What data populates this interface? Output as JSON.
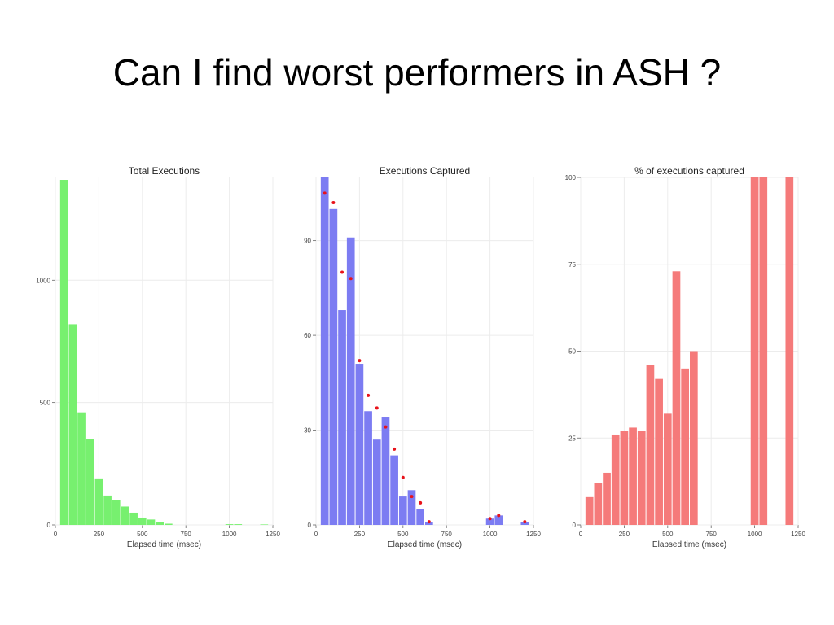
{
  "slide": {
    "title": "Can I find worst performers in ASH ?"
  },
  "colors": {
    "green": "#77f06f",
    "blue": "#7c7cf2",
    "red": "#f57a7a",
    "marker": "#e8121a",
    "grid": "#ececec"
  },
  "chart_data": [
    {
      "type": "bar",
      "title": "Total Executions",
      "xlabel": "Elapsed time (msec)",
      "ylabel": "",
      "xlim": [
        0,
        1250
      ],
      "ylim": [
        0,
        1420
      ],
      "xticks": [
        "0",
        "250",
        "500",
        "750",
        "1000",
        "1250"
      ],
      "yticks": [
        "0",
        "500",
        "1000"
      ],
      "bin_width": 50,
      "x": [
        50,
        100,
        150,
        200,
        250,
        300,
        350,
        400,
        450,
        500,
        550,
        600,
        650,
        1000,
        1050,
        1200
      ],
      "values": [
        1410,
        820,
        460,
        350,
        190,
        120,
        100,
        75,
        50,
        30,
        22,
        12,
        5,
        3,
        3,
        2
      ]
    },
    {
      "type": "bar",
      "title": "Executions Captured",
      "xlabel": "Elapsed time (msec)",
      "ylabel": "",
      "xlim": [
        0,
        1250
      ],
      "ylim": [
        0,
        110
      ],
      "xticks": [
        "0",
        "250",
        "500",
        "750",
        "1000",
        "1250"
      ],
      "yticks": [
        "0",
        "30",
        "60",
        "90"
      ],
      "bin_width": 50,
      "x": [
        50,
        100,
        150,
        200,
        250,
        300,
        350,
        400,
        450,
        500,
        550,
        600,
        650,
        1000,
        1050,
        1200
      ],
      "values": [
        110,
        100,
        68,
        91,
        51,
        36,
        27,
        34,
        22,
        9,
        11,
        5,
        1,
        2,
        3,
        1
      ],
      "markers": [
        105,
        102,
        80,
        78,
        52,
        41,
        37,
        31,
        24,
        15,
        9,
        7,
        1,
        2,
        3,
        1
      ]
    },
    {
      "type": "bar",
      "title": "% of executions captured",
      "xlabel": "Elapsed time (msec)",
      "ylabel": "",
      "xlim": [
        0,
        1250
      ],
      "ylim": [
        0,
        100
      ],
      "xticks": [
        "0",
        "250",
        "500",
        "750",
        "1000",
        "1250"
      ],
      "yticks": [
        "0",
        "25",
        "50",
        "75",
        "100"
      ],
      "bin_width": 50,
      "x": [
        50,
        100,
        150,
        200,
        250,
        300,
        350,
        400,
        450,
        500,
        550,
        600,
        650,
        1000,
        1050,
        1200
      ],
      "values": [
        8,
        12,
        15,
        26,
        27,
        28,
        27,
        46,
        42,
        32,
        73,
        45,
        50,
        100,
        100,
        100
      ]
    }
  ]
}
